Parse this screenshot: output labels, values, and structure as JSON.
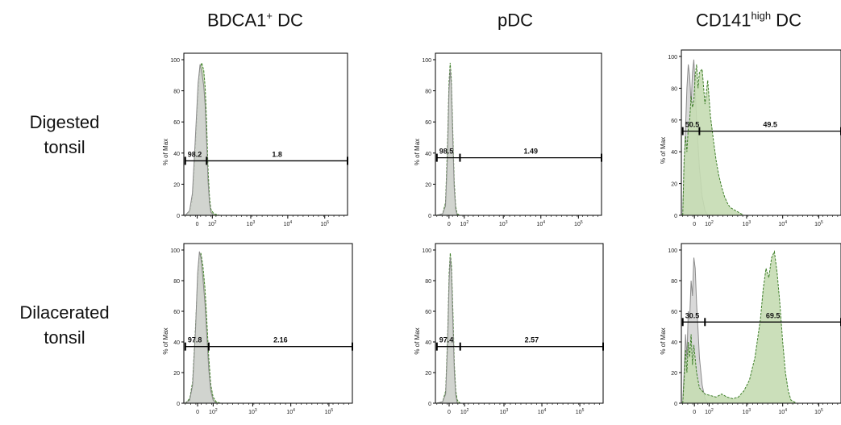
{
  "column_titles": [
    {
      "main": "BDCA1",
      "sup": "+",
      "rest": " DC"
    },
    {
      "main": "pDC",
      "sup": "",
      "rest": ""
    },
    {
      "main": "CD141",
      "sup": "high",
      "rest": " DC"
    }
  ],
  "row_labels": [
    {
      "line1": "Digested",
      "line2": "tonsil"
    },
    {
      "line1": "Dilacerated",
      "line2": "tonsil"
    }
  ],
  "colors": {
    "sample_fill": "#c5dbb2",
    "sample_stroke": "#3f7f2a",
    "control_fill": "#d2d2d2",
    "control_stroke": "#8a8a8a"
  },
  "chart_data": [
    {
      "type": "area",
      "panel": "BDCA1+ DC / Digested tonsil",
      "ylabel": "% of Max",
      "yticks": [
        "0",
        "20",
        "40",
        "60",
        "80",
        "100"
      ],
      "ylim": [
        0,
        100
      ],
      "xticks": [
        "0",
        "10^2",
        "10^3",
        "10^4",
        "10^5"
      ],
      "gates": [
        {
          "label": "98.2",
          "percent": 98.2
        },
        {
          "label": "1.8",
          "percent": 1.8
        }
      ],
      "gate_y": 35,
      "gate_from": -0.4,
      "gate_split": 0.35,
      "gate_to": 5.3,
      "series": [
        {
          "name": "sample",
          "points": [
            [
              -0.4,
              0
            ],
            [
              -0.25,
              2
            ],
            [
              -0.15,
              10
            ],
            [
              -0.05,
              40
            ],
            [
              0.05,
              78
            ],
            [
              0.12,
              95
            ],
            [
              0.18,
              98
            ],
            [
              0.25,
              93
            ],
            [
              0.3,
              82
            ],
            [
              0.35,
              60
            ],
            [
              0.4,
              30
            ],
            [
              0.45,
              12
            ],
            [
              0.5,
              4
            ],
            [
              0.6,
              1
            ],
            [
              0.8,
              0
            ],
            [
              5.3,
              0
            ]
          ]
        },
        {
          "name": "control",
          "points": [
            [
              -0.4,
              0
            ],
            [
              -0.25,
              3
            ],
            [
              -0.15,
              14
            ],
            [
              -0.05,
              48
            ],
            [
              0.05,
              85
            ],
            [
              0.12,
              97
            ],
            [
              0.18,
              92
            ],
            [
              0.25,
              83
            ],
            [
              0.3,
              70
            ],
            [
              0.35,
              48
            ],
            [
              0.4,
              22
            ],
            [
              0.45,
              8
            ],
            [
              0.5,
              2
            ],
            [
              0.6,
              0
            ],
            [
              5.3,
              0
            ]
          ]
        }
      ]
    },
    {
      "type": "area",
      "panel": "pDC / Digested tonsil",
      "ylabel": "% of Max",
      "yticks": [
        "0",
        "20",
        "40",
        "60",
        "80",
        "100"
      ],
      "ylim": [
        0,
        100
      ],
      "xticks": [
        "0",
        "10^2",
        "10^3",
        "10^4",
        "10^5"
      ],
      "gates": [
        {
          "label": "98.5",
          "percent": 98.5
        },
        {
          "label": "1.49",
          "percent": 1.49
        }
      ],
      "gate_y": 37,
      "gate_from": -0.4,
      "gate_split": 0.4,
      "gate_to": 5.3,
      "series": [
        {
          "name": "sample",
          "points": [
            [
              -0.4,
              0
            ],
            [
              -0.2,
              1
            ],
            [
              -0.1,
              8
            ],
            [
              -0.03,
              45
            ],
            [
              0.02,
              85
            ],
            [
              0.06,
              98
            ],
            [
              0.1,
              88
            ],
            [
              0.15,
              55
            ],
            [
              0.2,
              22
            ],
            [
              0.25,
              6
            ],
            [
              0.3,
              1
            ],
            [
              0.4,
              0
            ],
            [
              5.3,
              0
            ]
          ]
        },
        {
          "name": "control",
          "points": [
            [
              -0.4,
              0
            ],
            [
              -0.2,
              1
            ],
            [
              -0.1,
              6
            ],
            [
              -0.03,
              38
            ],
            [
              0.02,
              80
            ],
            [
              0.06,
              94
            ],
            [
              0.1,
              84
            ],
            [
              0.15,
              50
            ],
            [
              0.2,
              18
            ],
            [
              0.25,
              4
            ],
            [
              0.3,
              0
            ],
            [
              5.3,
              0
            ]
          ]
        }
      ]
    },
    {
      "type": "area",
      "panel": "CD141high DC / Digested tonsil",
      "ylabel": "% of Max",
      "yticks": [
        "0",
        "20",
        "40",
        "60",
        "80",
        "100"
      ],
      "ylim": [
        0,
        100
      ],
      "xticks": [
        "0",
        "10^2",
        "10^3",
        "10^4",
        "10^5"
      ],
      "gates": [
        {
          "label": "50.5",
          "percent": 50.5
        },
        {
          "label": "49.5",
          "percent": 49.5
        }
      ],
      "gate_y": 53,
      "gate_from": -0.4,
      "gate_split": 0.2,
      "gate_to": 5.3,
      "series": [
        {
          "name": "control",
          "points": [
            [
              -0.4,
              0
            ],
            [
              -0.35,
              30
            ],
            [
              -0.3,
              55
            ],
            [
              -0.25,
              80
            ],
            [
              -0.2,
              95
            ],
            [
              -0.15,
              88
            ],
            [
              -0.1,
              70
            ],
            [
              -0.05,
              90
            ],
            [
              0,
              98
            ],
            [
              0.05,
              80
            ],
            [
              0.1,
              60
            ],
            [
              0.2,
              30
            ],
            [
              0.3,
              12
            ],
            [
              0.4,
              3
            ],
            [
              0.5,
              0
            ],
            [
              5.3,
              0
            ]
          ]
        },
        {
          "name": "sample",
          "points": [
            [
              -0.4,
              0
            ],
            [
              -0.35,
              35
            ],
            [
              -0.3,
              50
            ],
            [
              -0.25,
              40
            ],
            [
              -0.2,
              55
            ],
            [
              -0.15,
              60
            ],
            [
              -0.1,
              75
            ],
            [
              -0.05,
              68
            ],
            [
              0,
              72
            ],
            [
              0.05,
              88
            ],
            [
              0.1,
              95
            ],
            [
              0.15,
              80
            ],
            [
              0.2,
              90
            ],
            [
              0.3,
              92
            ],
            [
              0.4,
              70
            ],
            [
              0.5,
              85
            ],
            [
              0.6,
              62
            ],
            [
              0.7,
              48
            ],
            [
              0.8,
              35
            ],
            [
              0.9,
              25
            ],
            [
              1.0,
              18
            ],
            [
              1.1,
              12
            ],
            [
              1.2,
              8
            ],
            [
              1.3,
              5
            ],
            [
              1.5,
              3
            ],
            [
              1.8,
              0
            ],
            [
              5.3,
              0
            ]
          ]
        }
      ]
    },
    {
      "type": "area",
      "panel": "BDCA1+ DC / Dilacerated tonsil",
      "ylabel": "% of Max",
      "yticks": [
        "0",
        "20",
        "40",
        "60",
        "80",
        "100"
      ],
      "ylim": [
        0,
        100
      ],
      "xticks": [
        "0",
        "10^2",
        "10^3",
        "10^4",
        "10^5"
      ],
      "gates": [
        {
          "label": "97.8",
          "percent": 97.8
        },
        {
          "label": "2.16",
          "percent": 2.16
        }
      ],
      "gate_y": 37,
      "gate_from": -0.4,
      "gate_split": 0.4,
      "gate_to": 5.3,
      "series": [
        {
          "name": "sample",
          "points": [
            [
              -0.4,
              0
            ],
            [
              -0.25,
              3
            ],
            [
              -0.15,
              14
            ],
            [
              -0.05,
              50
            ],
            [
              0.02,
              80
            ],
            [
              0.08,
              95
            ],
            [
              0.13,
              98
            ],
            [
              0.2,
              90
            ],
            [
              0.27,
              75
            ],
            [
              0.33,
              55
            ],
            [
              0.4,
              30
            ],
            [
              0.47,
              12
            ],
            [
              0.55,
              4
            ],
            [
              0.65,
              1
            ],
            [
              0.8,
              0
            ],
            [
              5.3,
              0
            ]
          ]
        },
        {
          "name": "control",
          "points": [
            [
              -0.4,
              0
            ],
            [
              -0.25,
              2
            ],
            [
              -0.15,
              12
            ],
            [
              -0.05,
              48
            ],
            [
              0.02,
              85
            ],
            [
              0.08,
              99
            ],
            [
              0.13,
              95
            ],
            [
              0.2,
              82
            ],
            [
              0.27,
              65
            ],
            [
              0.33,
              45
            ],
            [
              0.4,
              22
            ],
            [
              0.47,
              8
            ],
            [
              0.55,
              2
            ],
            [
              0.65,
              0
            ],
            [
              5.3,
              0
            ]
          ]
        }
      ]
    },
    {
      "type": "area",
      "panel": "pDC / Dilacerated tonsil",
      "ylabel": "% of Max",
      "yticks": [
        "0",
        "20",
        "40",
        "60",
        "80",
        "100"
      ],
      "ylim": [
        0,
        100
      ],
      "xticks": [
        "0",
        "10^2",
        "10^3",
        "10^4",
        "10^5"
      ],
      "gates": [
        {
          "label": "97.4",
          "percent": 97.4
        },
        {
          "label": "2.57",
          "percent": 2.57
        }
      ],
      "gate_y": 37,
      "gate_from": -0.4,
      "gate_split": 0.4,
      "gate_to": 5.3,
      "series": [
        {
          "name": "sample",
          "points": [
            [
              -0.4,
              0
            ],
            [
              -0.2,
              1
            ],
            [
              -0.1,
              8
            ],
            [
              -0.03,
              45
            ],
            [
              0.02,
              85
            ],
            [
              0.06,
              98
            ],
            [
              0.1,
              90
            ],
            [
              0.15,
              60
            ],
            [
              0.2,
              25
            ],
            [
              0.25,
              8
            ],
            [
              0.3,
              2
            ],
            [
              0.4,
              0
            ],
            [
              5.3,
              0
            ]
          ]
        },
        {
          "name": "control",
          "points": [
            [
              -0.4,
              0
            ],
            [
              -0.2,
              1
            ],
            [
              -0.1,
              6
            ],
            [
              -0.03,
              40
            ],
            [
              0.02,
              80
            ],
            [
              0.06,
              95
            ],
            [
              0.1,
              85
            ],
            [
              0.15,
              52
            ],
            [
              0.2,
              20
            ],
            [
              0.25,
              5
            ],
            [
              0.3,
              0
            ],
            [
              5.3,
              0
            ]
          ]
        }
      ]
    },
    {
      "type": "area",
      "panel": "CD141high DC / Dilacerated tonsil",
      "ylabel": "% of Max",
      "yticks": [
        "0",
        "20",
        "40",
        "60",
        "80",
        "100"
      ],
      "ylim": [
        0,
        100
      ],
      "xticks": [
        "0",
        "10^2",
        "10^3",
        "10^4",
        "10^5"
      ],
      "gates": [
        {
          "label": "30.5",
          "percent": 30.5
        },
        {
          "label": "69.5",
          "percent": 69.5
        }
      ],
      "gate_y": 53,
      "gate_from": -0.4,
      "gate_split": 0.4,
      "gate_to": 5.3,
      "series": [
        {
          "name": "control",
          "points": [
            [
              -0.4,
              0
            ],
            [
              -0.35,
              20
            ],
            [
              -0.3,
              45
            ],
            [
              -0.25,
              30
            ],
            [
              -0.2,
              60
            ],
            [
              -0.15,
              55
            ],
            [
              -0.1,
              80
            ],
            [
              -0.05,
              70
            ],
            [
              0,
              95
            ],
            [
              0.05,
              88
            ],
            [
              0.1,
              65
            ],
            [
              0.15,
              48
            ],
            [
              0.2,
              30
            ],
            [
              0.3,
              12
            ],
            [
              0.4,
              3
            ],
            [
              0.5,
              0
            ],
            [
              5.3,
              0
            ]
          ]
        },
        {
          "name": "sample",
          "points": [
            [
              -0.4,
              0
            ],
            [
              -0.35,
              15
            ],
            [
              -0.3,
              35
            ],
            [
              -0.25,
              20
            ],
            [
              -0.2,
              40
            ],
            [
              -0.15,
              30
            ],
            [
              -0.1,
              45
            ],
            [
              -0.05,
              25
            ],
            [
              0,
              38
            ],
            [
              0.1,
              20
            ],
            [
              0.2,
              10
            ],
            [
              0.4,
              6
            ],
            [
              0.6,
              5
            ],
            [
              0.8,
              4
            ],
            [
              1.0,
              6
            ],
            [
              1.2,
              4
            ],
            [
              1.4,
              3
            ],
            [
              1.6,
              4
            ],
            [
              1.8,
              8
            ],
            [
              2.0,
              15
            ],
            [
              2.2,
              30
            ],
            [
              2.4,
              55
            ],
            [
              2.5,
              75
            ],
            [
              2.6,
              88
            ],
            [
              2.7,
              82
            ],
            [
              2.8,
              95
            ],
            [
              2.9,
              99
            ],
            [
              3.0,
              85
            ],
            [
              3.1,
              65
            ],
            [
              3.2,
              40
            ],
            [
              3.3,
              20
            ],
            [
              3.4,
              8
            ],
            [
              3.5,
              2
            ],
            [
              3.7,
              0
            ],
            [
              5.3,
              0
            ]
          ]
        }
      ]
    }
  ]
}
